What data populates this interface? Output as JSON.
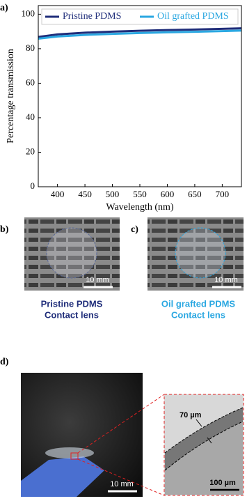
{
  "chart_data": {
    "type": "line",
    "x_label": "Wavelength (nm)",
    "y_label": "Percentage transmission",
    "x": [
      365,
      400,
      450,
      500,
      550,
      600,
      650,
      700,
      735
    ],
    "series": [
      {
        "name": "Pristine PDMS",
        "color": "#1f2d7a",
        "values": [
          86.8,
          88.3,
          89.3,
          89.9,
          90.4,
          90.8,
          91.1,
          91.5,
          91.8
        ]
      },
      {
        "name": "Oil grafted PDMS",
        "color": "#2aa7e1",
        "values": [
          85.8,
          87.1,
          88.0,
          88.6,
          89.1,
          89.5,
          89.8,
          90.2,
          90.5
        ]
      }
    ],
    "xlim": [
      365,
      735
    ],
    "xticks": [
      400,
      450,
      500,
      550,
      600,
      650,
      700
    ],
    "ylim": [
      0,
      105
    ],
    "yticks": [
      0,
      20,
      40,
      60,
      80,
      100
    ],
    "legend": "upper center"
  },
  "panel_labels": [
    "a)",
    "b)",
    "c)",
    "d)"
  ],
  "photos": [
    {
      "caption": [
        "Pristine PDMS",
        "Contact lens"
      ],
      "scale": "10 mm"
    },
    {
      "caption": [
        "Oil grafted PDMS",
        "Contact lens"
      ],
      "scale": "10 mm"
    }
  ],
  "photo_d": {
    "scale": "10 mm",
    "thickness": "70 µm",
    "inset_scale": "100 µm"
  }
}
